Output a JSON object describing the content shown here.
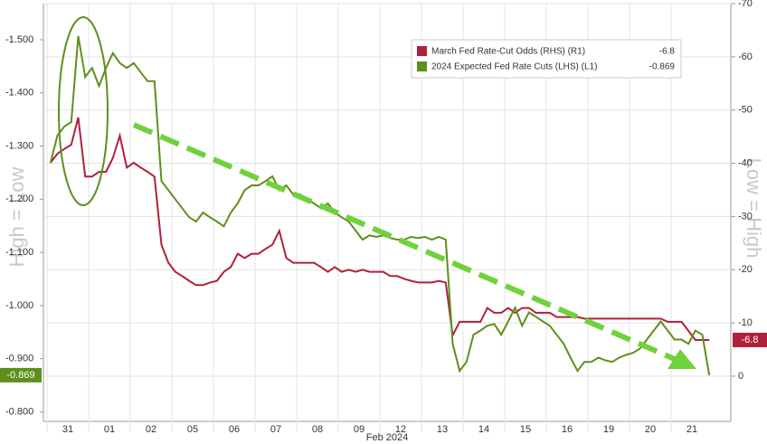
{
  "chart_data": {
    "type": "line",
    "categories": [
      "31",
      "01",
      "02",
      "05",
      "06",
      "07",
      "08",
      "09",
      "12",
      "13",
      "14",
      "15",
      "16",
      "19",
      "20",
      "21"
    ],
    "x_label": "Feb 2024",
    "annotations": [
      "High = Low",
      "Low = High"
    ],
    "ylim": [
      -0.782,
      -1.568
    ],
    "yticks": [
      {
        "value": -1.5,
        "label": "-1.500"
      },
      {
        "value": -1.4,
        "label": "-1.400"
      },
      {
        "value": -1.3,
        "label": "-1.300"
      },
      {
        "value": -1.2,
        "label": "-1.200"
      },
      {
        "value": -1.1,
        "label": "-1.100"
      },
      {
        "value": -1.0,
        "label": "-1.000"
      },
      {
        "value": -0.9,
        "label": "-0.900"
      },
      {
        "value": -0.8,
        "label": "-0.800"
      }
    ],
    "y2lim": [
      8.5,
      -70
    ],
    "y2ticks": [
      -70,
      -60,
      -50,
      -40,
      -30,
      -20,
      -10,
      0
    ],
    "grid": true,
    "legend": "upper right",
    "series": [
      {
        "name": "March Fed Rate-Cut Odds (RHS) (R1)",
        "color": "#b0203a",
        "axis": "y2",
        "current_label": "-6.8",
        "values": [
          [
            -40.1,
            -41.8,
            -42.7,
            -43.5,
            -48.6,
            -37.5
          ],
          [
            -37.5,
            -38.4,
            -38.4,
            -41.0,
            -45.2,
            -39.2
          ],
          [
            -40.1,
            -39.2,
            -38.4,
            -37.5,
            -24.7,
            -21.3
          ],
          [
            -19.6,
            -18.8,
            -17.9,
            -17.1,
            -17.1,
            -17.6
          ],
          [
            -17.9,
            -19.6,
            -20.5,
            -23.0,
            -22.2,
            -23.0
          ],
          [
            -23.0,
            -23.9,
            -24.7,
            -27.3,
            -22.2,
            -21.3
          ],
          [
            -21.3,
            -21.3,
            -21.3,
            -20.5,
            -19.6,
            -20.5
          ],
          [
            -19.6,
            -20.0,
            -19.6,
            -20.0,
            -19.6,
            -19.6
          ],
          [
            -19.6,
            -18.8,
            -18.8,
            -18.3,
            -17.9,
            -17.6
          ],
          [
            -17.6,
            -17.6,
            -17.9,
            -17.6,
            -7.7,
            -10.2
          ],
          [
            -10.2,
            -10.2,
            -10.2,
            -12.8,
            -11.9,
            -11.9
          ],
          [
            -12.8,
            -11.9,
            -12.8,
            -12.8,
            -11.9,
            -11.9
          ],
          [
            -11.9,
            -11.1,
            -11.1,
            -11.1,
            -11.1,
            -10.8
          ],
          [
            -10.8,
            -10.8,
            -10.8,
            -10.8,
            -10.8,
            -10.8
          ],
          [
            -10.8,
            -10.8,
            -10.8,
            -10.8,
            -10.8,
            -10.2
          ],
          [
            -10.2,
            -10.2,
            -8.5,
            -6.8,
            -6.8,
            -6.8
          ]
        ]
      },
      {
        "name": "2024 Expected Fed Rate Cuts (LHS) (L1)",
        "color": "#5e8f1c",
        "axis": "y",
        "current_label": "-0.869",
        "values": [
          [
            -1.268,
            -1.32,
            -1.337,
            -1.345,
            -1.507,
            -1.43
          ],
          [
            -1.447,
            -1.413,
            -1.447,
            -1.475,
            -1.456,
            -1.447
          ],
          [
            -1.456,
            -1.439,
            -1.422,
            -1.422,
            -1.234,
            -1.217
          ],
          [
            -1.2,
            -1.183,
            -1.166,
            -1.158,
            -1.175,
            -1.166
          ],
          [
            -1.158,
            -1.149,
            -1.175,
            -1.192,
            -1.217,
            -1.226
          ],
          [
            -1.226,
            -1.234,
            -1.243,
            -1.217,
            -1.226,
            -1.209
          ],
          [
            -1.209,
            -1.2,
            -1.192,
            -1.183,
            -1.192,
            -1.175
          ],
          [
            -1.166,
            -1.158,
            -1.141,
            -1.124,
            -1.132,
            -1.129
          ],
          [
            -1.132,
            -1.127,
            -1.124,
            -1.124,
            -1.129,
            -1.127
          ],
          [
            -1.129,
            -1.124,
            -1.129,
            -1.124,
            -0.928,
            -0.877
          ],
          [
            -0.894,
            -0.945,
            -0.953,
            -0.962,
            -0.965,
            -0.945
          ],
          [
            -0.97,
            -0.996,
            -0.962,
            -0.987,
            -0.979,
            -0.97
          ],
          [
            -0.962,
            -0.945,
            -0.928,
            -0.902,
            -0.877,
            -0.894
          ],
          [
            -0.894,
            -0.902,
            -0.897,
            -0.894,
            -0.902,
            -0.907
          ],
          [
            -0.911,
            -0.919,
            -0.936,
            -0.953,
            -0.97,
            -0.953
          ],
          [
            -0.936,
            -0.936,
            -0.928,
            -0.953,
            -0.945,
            -0.869
          ]
        ]
      }
    ]
  }
}
